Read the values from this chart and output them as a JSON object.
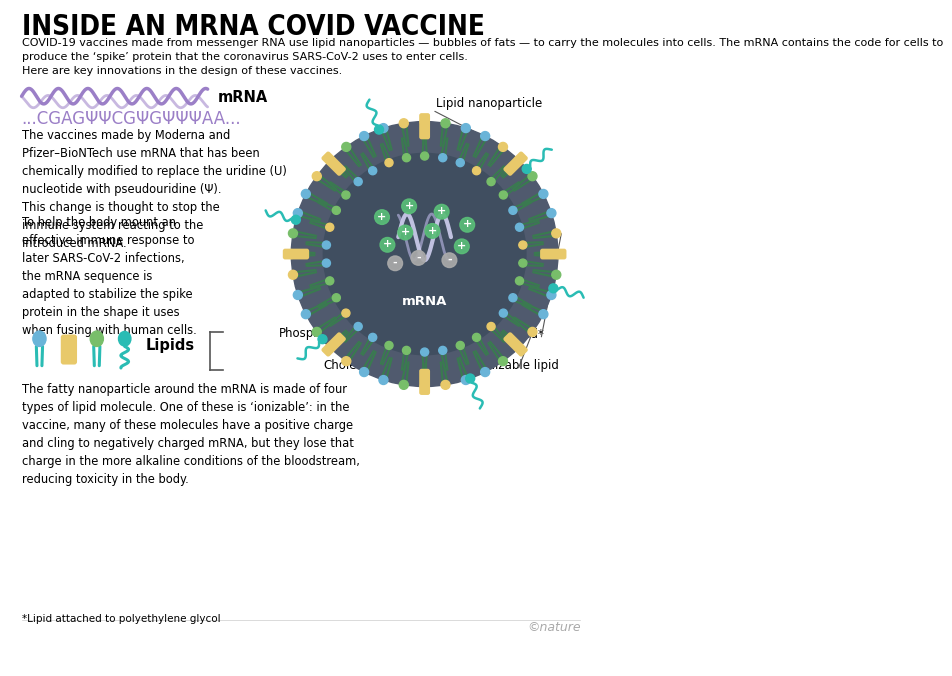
{
  "title": "INSIDE AN MRNA COVID VACCINE",
  "subtitle": "COVID-19 vaccines made from messenger RNA use lipid nanoparticles — bubbles of fats — to carry the molecules into cells. The mRNA contains the code for cells to\nproduce the ‘spike’ protein that the coronavirus SARS-CoV-2 uses to enter cells.\nHere are key innovations in the design of these vaccines.",
  "mrna_label": "mRNA",
  "mrna_sequence": "...CGAGΨΨCGΨGΨΨΨAA...",
  "para1": "The vaccines made by Moderna and\nPfizer–BioNTech use mRNA that has been\nchemically modified to replace the uridine (U)\nnucleotide with pseudouridine (Ψ).\nThis change is thought to stop the\nimmune system reacting to the\nintroduced mRNA.",
  "para2": "To help the body mount an\neffective immune response to\nlater SARS-CoV-2 infections,\nthe mRNA sequence is\nadapted to stabilize the spike\nprotein in the shape it uses\nwhen fusing with human cells.",
  "nanoparticle_label": "Lipid nanoparticle",
  "mrna_inside_label": "mRNA",
  "lipids_label": "Lipids",
  "phospholipid_label": "Phospholipid",
  "cholesterol_label": "Cholesterol",
  "peg_label": "PEG-lipid*",
  "ionizable_label": "Ionizable lipid",
  "bottom_para": "The fatty nanoparticle around the mRNA is made of four\ntypes of lipid molecule. One of these is ‘ionizable’: in the\nvaccine, many of these molecules have a positive charge\nand cling to negatively charged mRNA, but they lose that\ncharge in the more alkaline conditions of the bloodstream,\nreducing toxicity in the body.",
  "footnote": "*Lipid attached to polyethylene glycol",
  "copyright": "©nature",
  "bg_color": "#ffffff",
  "title_color": "#000000",
  "body_color": "#000000",
  "mrna_wave_color": "#9b7fc7",
  "seq_color": "#9b7fc7",
  "np_bg_color": "#505a6e",
  "np_inner_color": "#404e60",
  "yellow_lipid": "#e8c96a",
  "blue_lipid": "#6ab4d8",
  "green_lipid": "#78be6a",
  "teal_tail": "#2abcb4",
  "dark_green_tail": "#3a7a50",
  "plus_color": "#5abe78",
  "minus_color": "#aaaaaa",
  "mrna_strand1": "#c8c8e8",
  "mrna_strand2": "#a0a0c8"
}
